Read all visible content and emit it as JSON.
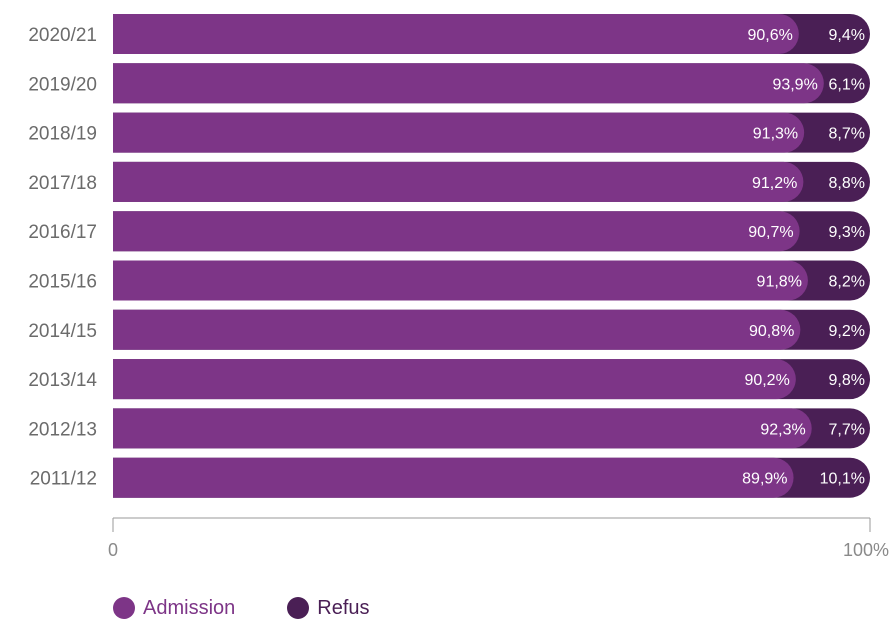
{
  "chart_data": {
    "type": "bar",
    "orientation": "horizontal",
    "stacked": true,
    "categories": [
      "2020/21",
      "2019/20",
      "2018/19",
      "2017/18",
      "2016/17",
      "2015/16",
      "2014/15",
      "2013/14",
      "2012/13",
      "2011/12"
    ],
    "series": [
      {
        "name": "Admission",
        "color": "#7d3587",
        "values": [
          90.6,
          93.9,
          91.3,
          91.2,
          90.7,
          91.8,
          90.8,
          90.2,
          92.3,
          89.9
        ],
        "labels": [
          "90,6%",
          "93,9%",
          "91,3%",
          "91,2%",
          "90,7%",
          "91,8%",
          "90,8%",
          "90,2%",
          "92,3%",
          "89,9%"
        ]
      },
      {
        "name": "Refus",
        "color": "#4a1f55",
        "values": [
          9.4,
          6.1,
          8.7,
          8.8,
          9.3,
          8.2,
          9.2,
          9.8,
          7.7,
          10.1
        ],
        "labels": [
          "9,4%",
          "6,1%",
          "8,7%",
          "8,8%",
          "9,3%",
          "8,2%",
          "9,2%",
          "9,8%",
          "7,7%",
          "10,1%"
        ]
      }
    ],
    "xlim": [
      0,
      100
    ],
    "x_tick_labels": [
      "0",
      "100%"
    ],
    "legend_position": "bottom-left"
  }
}
